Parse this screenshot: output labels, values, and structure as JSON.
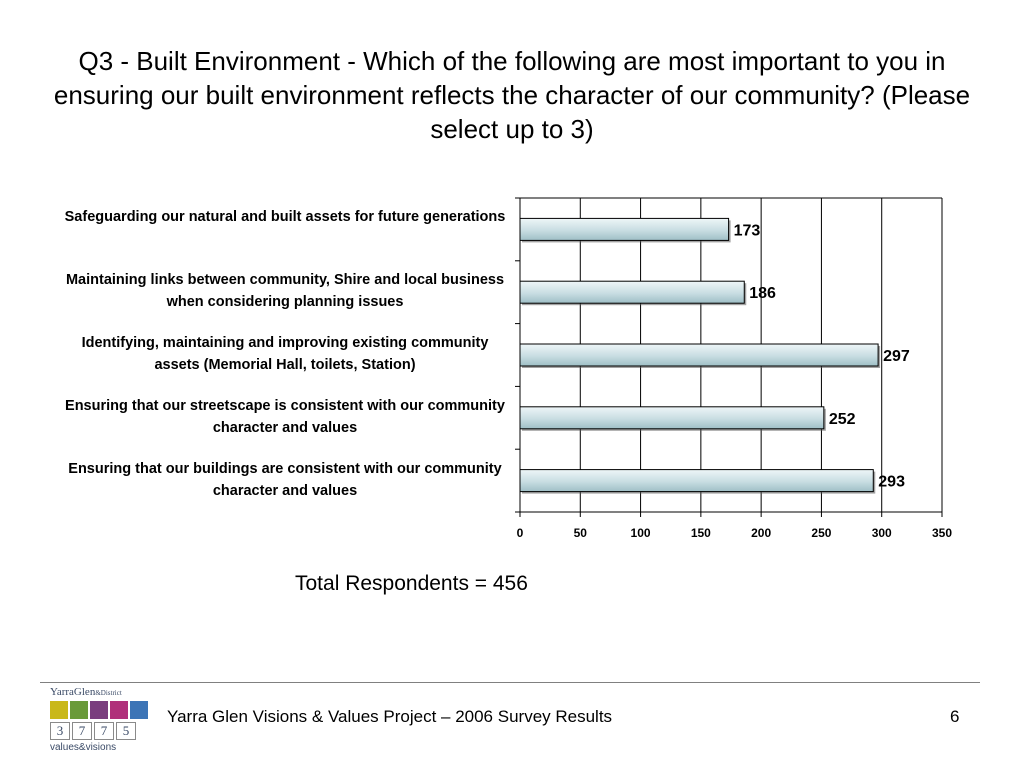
{
  "slide": {
    "title": "Q3 - Built Environment - Which of the following are most important to you in ensuring our built environment reflects the character of our community? (Please select up to 3)",
    "total_respondents": "Total Respondents = 456",
    "footer": "Yarra Glen Visions & Values Project – 2006 Survey Results",
    "page_number": "6"
  },
  "logo": {
    "top_text": "YarraGlen",
    "top_small": "&District",
    "digits": [
      "3",
      "7",
      "7",
      "5"
    ],
    "bottom_text": "values&visions"
  },
  "colors": {
    "bar_fill_light": "#eef6f8",
    "bar_fill_dark": "#9fbfc6",
    "bar_stroke": "#000000",
    "grid": "#000000",
    "logo_yellow": "#c9b81a",
    "logo_green": "#6a9a3a",
    "logo_purple": "#7a3e7e",
    "logo_magenta": "#b0307a",
    "logo_blue": "#3c74b6"
  },
  "chart_data": {
    "type": "bar",
    "orientation": "horizontal",
    "categories": [
      "Safeguarding our natural and built assets for future generations",
      "Maintaining links between community, Shire and local business when considering planning issues",
      "Identifying, maintaining and improving existing community assets (Memorial Hall, toilets, Station)",
      "Ensuring that our streetscape is consistent with our community character and values",
      "Ensuring that our buildings are consistent with our community character and values"
    ],
    "values": [
      173,
      186,
      297,
      252,
      293
    ],
    "data_labels": [
      "173",
      "186",
      "297",
      "252",
      "293"
    ],
    "xlim": [
      0,
      350
    ],
    "xticks": [
      "0",
      "50",
      "100",
      "150",
      "200",
      "250",
      "300",
      "350"
    ],
    "grid": true,
    "legend": "none"
  }
}
